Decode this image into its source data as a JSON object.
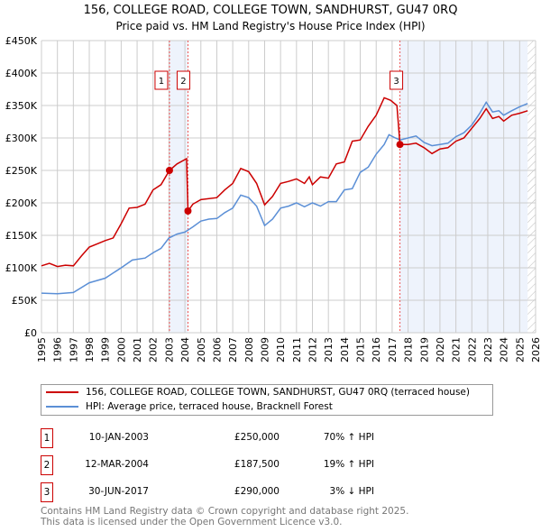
{
  "chart_data": {
    "type": "line",
    "title": "156, COLLEGE ROAD, COLLEGE TOWN, SANDHURST, GU47 0RQ",
    "subtitle": "Price paid vs. HM Land Registry's House Price Index (HPI)",
    "xlim": [
      1995,
      2026
    ],
    "ylim": [
      0,
      450000
    ],
    "x_ticks": [
      "1995",
      "1996",
      "1997",
      "1998",
      "1999",
      "2000",
      "2001",
      "2002",
      "2003",
      "2004",
      "2005",
      "2006",
      "2007",
      "2008",
      "2009",
      "2010",
      "2011",
      "2012",
      "2013",
      "2014",
      "2015",
      "2016",
      "2017",
      "2018",
      "2019",
      "2020",
      "2021",
      "2022",
      "2023",
      "2024",
      "2025",
      "2026"
    ],
    "y_ticks": [
      {
        "v": 0,
        "l": "£0"
      },
      {
        "v": 50000,
        "l": "£50K"
      },
      {
        "v": 100000,
        "l": "£100K"
      },
      {
        "v": 150000,
        "l": "£150K"
      },
      {
        "v": 200000,
        "l": "£200K"
      },
      {
        "v": 250000,
        "l": "£250K"
      },
      {
        "v": 300000,
        "l": "£300K"
      },
      {
        "v": 350000,
        "l": "£350K"
      },
      {
        "v": 400000,
        "l": "£400K"
      },
      {
        "v": 450000,
        "l": "£450K"
      }
    ],
    "series": [
      {
        "name": "156, COLLEGE ROAD, COLLEGE TOWN, SANDHURST, GU47 0RQ (terraced house)",
        "color": "#cc0000",
        "x": [
          1995,
          1995.5,
          1996,
          1996.5,
          1997,
          1997.5,
          1998,
          1998.5,
          1999,
          1999.5,
          2000,
          2000.5,
          2001,
          2001.5,
          2002,
          2002.5,
          2003.03,
          2003.5,
          2004.1,
          2004.19,
          2004.5,
          2005,
          2006,
          2006.5,
          2007,
          2007.5,
          2008,
          2008.5,
          2009,
          2009.5,
          2010,
          2010.5,
          2011,
          2011.5,
          2011.8,
          2012,
          2012.5,
          2013,
          2013.5,
          2014,
          2014.5,
          2015,
          2015.5,
          2016,
          2016.5,
          2016.9,
          2017.3,
          2017.49,
          2018,
          2018.5,
          2019,
          2019.5,
          2020,
          2020.5,
          2021,
          2021.5,
          2022,
          2022.5,
          2022.9,
          2023.3,
          2023.7,
          2024,
          2024.5,
          2025,
          2025.5
        ],
        "y": [
          103,
          107,
          102,
          104,
          103,
          118,
          132,
          137,
          142,
          146,
          168,
          192,
          193,
          198,
          220,
          228,
          250,
          260,
          268,
          187.5,
          198,
          205,
          208,
          220,
          230,
          253,
          248,
          230,
          197,
          210,
          230,
          233,
          237,
          230,
          240,
          228,
          240,
          238,
          260,
          263,
          295,
          297,
          318,
          335,
          362,
          358,
          350,
          290,
          290,
          292,
          285,
          276,
          283,
          285,
          295,
          300,
          315,
          330,
          345,
          330,
          333,
          326,
          335,
          338,
          342
        ]
      },
      {
        "name": "HPI: Average price, terraced house, Bracknell Forest",
        "color": "#5b8fd6",
        "x": [
          1995,
          1996,
          1997,
          1998,
          1999,
          2000,
          2000.7,
          2001.5,
          2002,
          2002.5,
          2003,
          2003.5,
          2004,
          2004.5,
          2005,
          2005.5,
          2006,
          2006.5,
          2007,
          2007.5,
          2008,
          2008.5,
          2009,
          2009.5,
          2010,
          2010.5,
          2011,
          2011.5,
          2012,
          2012.5,
          2013,
          2013.5,
          2014,
          2014.5,
          2015,
          2015.5,
          2016,
          2016.5,
          2016.8,
          2017.2,
          2017.5,
          2018,
          2018.5,
          2019,
          2019.5,
          2020,
          2020.5,
          2021,
          2021.5,
          2022,
          2022.5,
          2022.9,
          2023.3,
          2023.7,
          2024,
          2024.5,
          2025,
          2025.5
        ],
        "y": [
          61,
          60,
          62,
          77,
          84,
          100,
          112,
          115,
          123,
          130,
          146,
          152,
          155,
          163,
          172,
          175,
          176,
          185,
          192,
          212,
          208,
          195,
          165,
          175,
          192,
          195,
          200,
          194,
          200,
          195,
          202,
          202,
          220,
          222,
          247,
          255,
          275,
          290,
          305,
          300,
          297,
          300,
          303,
          293,
          288,
          290,
          292,
          302,
          308,
          320,
          338,
          355,
          340,
          342,
          335,
          342,
          348,
          353
        ]
      }
    ],
    "y_units": "thousands GBP",
    "sales": [
      {
        "id": "1",
        "x": 2003.03,
        "y": 250
      },
      {
        "id": "2",
        "x": 2004.19,
        "y": 187.5
      },
      {
        "id": "3",
        "x": 2017.49,
        "y": 290
      }
    ],
    "shaded_ranges": [
      [
        2003.03,
        2004.19
      ],
      [
        2017.49,
        2025.5
      ]
    ],
    "forecast_hatch_from": 2025.5
  },
  "legend": {
    "red_label": "156, COLLEGE ROAD, COLLEGE TOWN, SANDHURST, GU47 0RQ (terraced house)",
    "blue_label": "HPI: Average price, terraced house, Bracknell Forest"
  },
  "sales_table": [
    {
      "id": "1",
      "date": "10-JAN-2003",
      "price": "£250,000",
      "hpi": "70% ↑ HPI"
    },
    {
      "id": "2",
      "date": "12-MAR-2004",
      "price": "£187,500",
      "hpi": "19% ↑ HPI"
    },
    {
      "id": "3",
      "date": "30-JUN-2017",
      "price": "£290,000",
      "hpi": "3% ↓ HPI"
    }
  ],
  "footer": {
    "line1": "Contains HM Land Registry data © Crown copyright and database right 2025.",
    "line2": "This data is licensed under the Open Government Licence v3.0."
  }
}
